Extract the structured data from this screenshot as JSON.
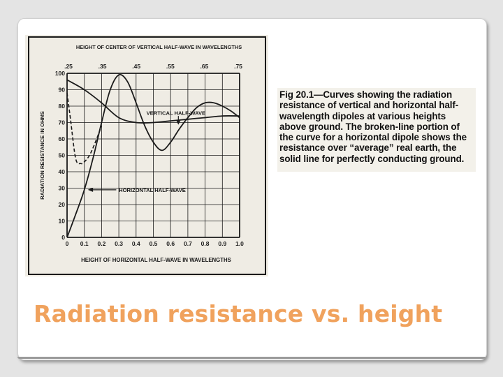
{
  "slide": {
    "title": "Radiation resistance vs. height",
    "caption": "Fig 20.1—Curves showing the radiation resistance of vertical and horizontal half-wavelength dipoles at various heights above ground. The broken-line portion of the curve for a horizontal dipole shows the resistance over “average” real earth, the solid line for perfectly conducting ground."
  },
  "colors": {
    "title": "#f0a25d",
    "ink": "#1a1a1a",
    "scan_bg": "#efece4"
  },
  "chart_data": {
    "type": "line",
    "title": "",
    "top_axis_label": "HEIGHT OF CENTER OF VERTICAL HALF-WAVE IN WAVELENGTHS",
    "top_ticks": [
      ".25",
      ".35",
      ".45",
      ".55",
      ".65",
      ".75"
    ],
    "xlabel": "HEIGHT OF HORIZONTAL HALF-WAVE IN WAVELENGTHS",
    "ylabel": "RADIATION RESISTANCE IN OHMS",
    "x_ticks": [
      "0",
      "0.1",
      "0.2",
      "0.3",
      "0.4",
      "0.5",
      "0.6",
      "0.7",
      "0.8",
      "0.9",
      "1.0"
    ],
    "y_ticks": [
      "0",
      "10",
      "20",
      "30",
      "40",
      "50",
      "60",
      "70",
      "80",
      "90",
      "100"
    ],
    "xlim": [
      0,
      1.0
    ],
    "ylim": [
      0,
      100
    ],
    "grid": true,
    "series": [
      {
        "name": "HORIZONTAL HALF-WAVE",
        "style": "solid",
        "x": [
          0.0,
          0.05,
          0.1,
          0.15,
          0.2,
          0.25,
          0.3,
          0.35,
          0.4,
          0.45,
          0.5,
          0.55,
          0.6,
          0.65,
          0.7,
          0.75,
          0.8,
          0.85,
          0.9,
          0.95,
          1.0
        ],
        "y": [
          0,
          14,
          29,
          48,
          70,
          90,
          99,
          95,
          82,
          68,
          58,
          53,
          58,
          66,
          73,
          79,
          82,
          82,
          80,
          77,
          73
        ]
      },
      {
        "name": "",
        "style": "dashed",
        "x": [
          0.0,
          0.02,
          0.05,
          0.08,
          0.1,
          0.13,
          0.16,
          0.2
        ],
        "y": [
          88,
          72,
          48,
          45,
          46,
          50,
          57,
          68
        ]
      },
      {
        "name": "VERTICAL HALF-WAVE",
        "style": "solid",
        "x": [
          0.0,
          0.1,
          0.2,
          0.3,
          0.4,
          0.5,
          0.6,
          0.7,
          0.8,
          0.9,
          1.0
        ],
        "y": [
          96,
          90,
          82,
          73,
          70,
          70,
          71,
          72,
          73,
          74,
          74
        ]
      }
    ],
    "annotations": [
      {
        "text": "VERTICAL HALF-WAVE",
        "points_to_series": 2
      },
      {
        "text": "HORIZONTAL HALF-WAVE",
        "points_to_series": 0
      }
    ]
  }
}
